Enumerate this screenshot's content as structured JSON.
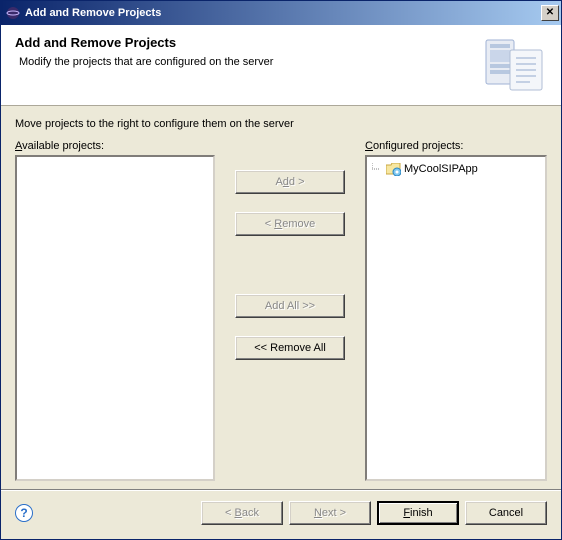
{
  "window": {
    "title": "Add and Remove Projects"
  },
  "header": {
    "title": "Add and Remove Projects",
    "subtitle": "Modify the projects that are configured on the server"
  },
  "instruction": "Move projects to the right to configure them on the server",
  "labels": {
    "available_u": "A",
    "available_rest": "vailable projects:",
    "configured_u": "C",
    "configured_rest": "onfigured projects:"
  },
  "buttons": {
    "add_pre": "A",
    "add_u": "d",
    "add_post": "d >",
    "remove_pre": "< ",
    "remove_u": "R",
    "remove_post": "emove",
    "addall": "Add All >>",
    "removeall": "<< Remove All",
    "back_pre": "< ",
    "back_u": "B",
    "back_post": "ack",
    "next_u": "N",
    "next_post": "ext >",
    "finish_u": "F",
    "finish_post": "inish",
    "cancel": "Cancel"
  },
  "available_items": [],
  "configured_items": [
    {
      "label": "MyCoolSIPApp"
    }
  ],
  "colors": {
    "titlebar_start": "#0a246a",
    "titlebar_end": "#a6caf0",
    "bg": "#ece9d8",
    "disabled_text": "#888888"
  }
}
